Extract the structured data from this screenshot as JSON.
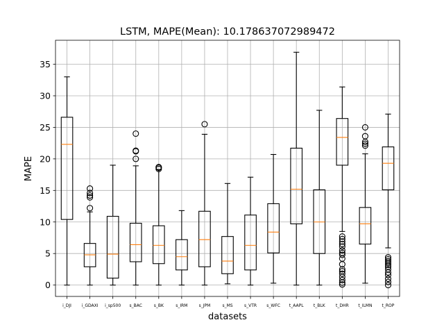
{
  "chart_data": {
    "type": "box",
    "title": "LSTM, MAPE(Mean): 10.178637072989472",
    "xlabel": "datasets",
    "ylabel": "MAPE",
    "ylim": [
      -1.8,
      38.8
    ],
    "yticks": [
      0,
      5,
      10,
      15,
      20,
      25,
      30,
      35
    ],
    "grid": true,
    "colors": {
      "box": "#000000",
      "median": "#ff7f0e",
      "grid": "#b0b0b0"
    },
    "categories": [
      "i_DJI",
      "i_GDAXI",
      "i_sp500",
      "s_BAC",
      "s_BK",
      "s_IRM",
      "s_JPM",
      "s_MS",
      "s_VTR",
      "s_WFC",
      "t_AAPL",
      "t_BLK",
      "t_DHR",
      "t_ILMN",
      "t_ROP"
    ],
    "boxes": [
      {
        "whislo": 0.0,
        "q1": 10.4,
        "med": 22.3,
        "q3": 26.6,
        "whishi": 33.0,
        "fliers": []
      },
      {
        "whislo": 0.0,
        "q1": 2.9,
        "med": 4.8,
        "q3": 6.6,
        "whishi": 11.6,
        "fliers": [
          12.2,
          13.9,
          14.2,
          14.6,
          15.3
        ]
      },
      {
        "whislo": 0.0,
        "q1": 1.1,
        "med": 4.9,
        "q3": 10.9,
        "whishi": 19.0,
        "fliers": []
      },
      {
        "whislo": 0.0,
        "q1": 3.7,
        "med": 6.4,
        "q3": 9.8,
        "whishi": 18.9,
        "fliers": [
          20.0,
          21.2,
          21.3,
          24.0
        ]
      },
      {
        "whislo": 0.0,
        "q1": 3.4,
        "med": 6.3,
        "q3": 9.4,
        "whishi": 18.3,
        "fliers": [
          18.4,
          18.6,
          18.7
        ]
      },
      {
        "whislo": 0.0,
        "q1": 2.4,
        "med": 4.5,
        "q3": 7.2,
        "whishi": 11.8,
        "fliers": []
      },
      {
        "whislo": 0.0,
        "q1": 2.9,
        "med": 7.2,
        "q3": 11.7,
        "whishi": 23.9,
        "fliers": [
          25.5
        ]
      },
      {
        "whislo": 0.2,
        "q1": 1.8,
        "med": 3.8,
        "q3": 7.7,
        "whishi": 16.1,
        "fliers": []
      },
      {
        "whislo": 0.0,
        "q1": 2.4,
        "med": 6.3,
        "q3": 11.1,
        "whishi": 17.1,
        "fliers": []
      },
      {
        "whislo": 0.3,
        "q1": 5.1,
        "med": 8.4,
        "q3": 12.9,
        "whishi": 20.7,
        "fliers": []
      },
      {
        "whislo": 0.0,
        "q1": 9.7,
        "med": 15.2,
        "q3": 21.7,
        "whishi": 36.9,
        "fliers": []
      },
      {
        "whislo": 0.0,
        "q1": 5.0,
        "med": 10.0,
        "q3": 15.1,
        "whishi": 27.7,
        "fliers": []
      },
      {
        "whislo": 8.5,
        "q1": 19.0,
        "med": 23.4,
        "q3": 26.4,
        "whishi": 31.4,
        "fliers": [
          0.1,
          0.4,
          0.8,
          1.3,
          1.8,
          2.2,
          2.5,
          3.3,
          4.2,
          4.8,
          5.1,
          5.5,
          6.1,
          6.5,
          6.9,
          7.3,
          7.7
        ]
      },
      {
        "whislo": 0.3,
        "q1": 6.5,
        "med": 9.7,
        "q3": 12.3,
        "whishi": 20.8,
        "fliers": [
          22.1,
          22.4,
          22.7,
          23.6,
          25.0
        ]
      },
      {
        "whislo": 5.9,
        "q1": 15.1,
        "med": 19.3,
        "q3": 21.9,
        "whishi": 27.1,
        "fliers": [
          0.0,
          0.5,
          1.0,
          1.6,
          2.0,
          2.5,
          2.9,
          3.2,
          3.5,
          3.8,
          4.1,
          4.4
        ]
      }
    ]
  }
}
